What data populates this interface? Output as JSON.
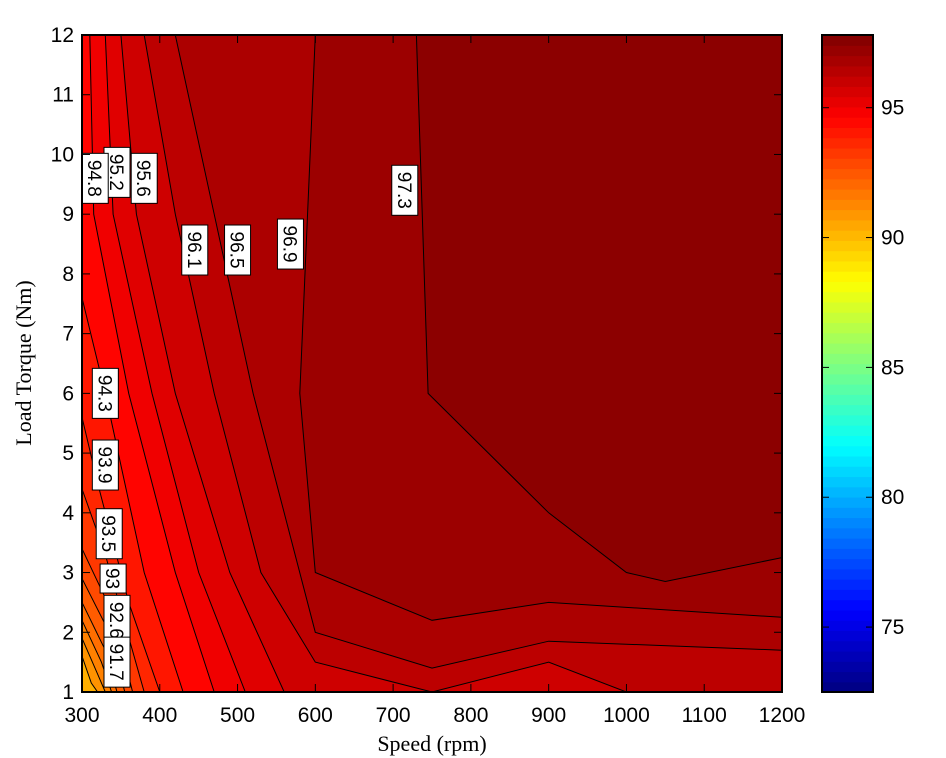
{
  "chart_data": {
    "type": "contour",
    "xlabel": "Speed (rpm)",
    "ylabel": "Load Torque (Nm)",
    "xlim": [
      300,
      1200
    ],
    "ylim": [
      1,
      12
    ],
    "xticks": [
      "300",
      "400",
      "500",
      "600",
      "700",
      "800",
      "900",
      "1000",
      "1100",
      "1200"
    ],
    "yticks": [
      "1",
      "2",
      "3",
      "4",
      "5",
      "6",
      "7",
      "8",
      "9",
      "10",
      "11",
      "12"
    ],
    "colorbar": {
      "colormap": "jet",
      "range": [
        72.5,
        97.8
      ],
      "ticks": [
        "75",
        "80",
        "85",
        "90",
        "95"
      ]
    },
    "contour_levels": [
      {
        "level": 97.3,
        "label": "97.3",
        "points": [
          [
            730,
            12
          ],
          [
            745,
            6
          ],
          [
            900,
            4
          ],
          [
            1000,
            3
          ],
          [
            1050,
            2.85
          ],
          [
            1200,
            3.25
          ]
        ]
      },
      {
        "level": 96.9,
        "label": "96.9",
        "points": [
          [
            600,
            12
          ],
          [
            580,
            6
          ],
          [
            600,
            3
          ],
          [
            750,
            2.2
          ],
          [
            900,
            2.5
          ],
          [
            1200,
            2.25
          ]
        ]
      },
      {
        "level": 96.5,
        "label": "96.5",
        "points": [
          [
            420,
            12
          ],
          [
            470,
            9
          ],
          [
            520,
            6
          ],
          [
            600,
            2
          ],
          [
            750,
            1.4
          ],
          [
            900,
            1.85
          ],
          [
            1200,
            1.7
          ]
        ]
      },
      {
        "level": 96.1,
        "label": "96.1",
        "points": [
          [
            380,
            12
          ],
          [
            420,
            9
          ],
          [
            470,
            6
          ],
          [
            530,
            3
          ],
          [
            600,
            1.5
          ],
          [
            750,
            1.0
          ],
          [
            900,
            1.5
          ],
          [
            1000,
            1.0
          ]
        ]
      },
      {
        "level": 95.6,
        "label": "95.6",
        "points": [
          [
            350,
            12
          ],
          [
            370,
            9
          ],
          [
            420,
            6
          ],
          [
            490,
            3
          ],
          [
            560,
            1
          ]
        ]
      },
      {
        "level": 95.2,
        "label": "95.2",
        "points": [
          [
            330,
            12
          ],
          [
            340,
            9
          ],
          [
            390,
            6
          ],
          [
            450,
            3
          ],
          [
            510,
            1
          ]
        ]
      },
      {
        "level": 94.8,
        "label": "94.8",
        "points": [
          [
            310,
            12
          ],
          [
            315,
            9
          ],
          [
            360,
            6
          ],
          [
            420,
            3
          ],
          [
            470,
            1
          ]
        ]
      },
      {
        "level": 94.3,
        "label": "94.3",
        "points": [
          [
            300,
            7.6
          ],
          [
            330,
            6
          ],
          [
            380,
            3
          ],
          [
            430,
            1
          ]
        ]
      },
      {
        "level": 93.9,
        "label": "93.9",
        "points": [
          [
            300,
            5.6
          ],
          [
            320,
            4.5
          ],
          [
            360,
            2.5
          ],
          [
            400,
            1
          ]
        ]
      },
      {
        "level": 93.5,
        "label": "93.5",
        "points": [
          [
            300,
            4.4
          ],
          [
            330,
            3.3
          ],
          [
            380,
            1
          ]
        ]
      },
      {
        "level": 93.0,
        "label": "93",
        "points": [
          [
            300,
            3.4
          ],
          [
            340,
            2.3
          ],
          [
            365,
            1
          ]
        ]
      },
      {
        "level": 92.6,
        "label": "92.6",
        "points": [
          [
            300,
            2.9
          ],
          [
            335,
            2.0
          ],
          [
            355,
            1
          ]
        ]
      },
      {
        "level": 92.1,
        "label": "",
        "points": [
          [
            300,
            2.5
          ],
          [
            330,
            1.7
          ],
          [
            345,
            1
          ]
        ]
      },
      {
        "level": 91.7,
        "label": "91.7",
        "points": [
          [
            300,
            2.2
          ],
          [
            325,
            1.5
          ],
          [
            338,
            1
          ]
        ]
      },
      {
        "level": 91.2,
        "label": "",
        "points": [
          [
            300,
            1.9
          ],
          [
            320,
            1.3
          ],
          [
            330,
            1
          ]
        ]
      },
      {
        "level": 90.8,
        "label": "",
        "points": [
          [
            300,
            1.6
          ],
          [
            312,
            1.15
          ],
          [
            320,
            1
          ]
        ]
      }
    ]
  }
}
